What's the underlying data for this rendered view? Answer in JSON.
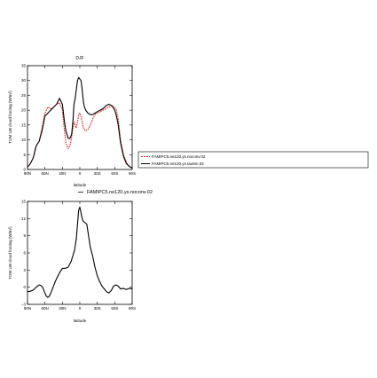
{
  "chart_data": [
    {
      "type": "line",
      "title": "DJF",
      "xlabel": "latitude",
      "ylabel": "TOM LW cloud forcing (W/m²)",
      "xlim": [
        90,
        -90
      ],
      "ylim": [
        0,
        35
      ],
      "x_ticks": [
        90,
        60,
        30,
        0,
        -30,
        -60,
        -90
      ],
      "x_tick_labels": [
        "90N",
        "60N",
        "30N",
        "0",
        "30S",
        "60S",
        "90S"
      ],
      "y_ticks": [
        0,
        5,
        10,
        15,
        20,
        25,
        30,
        35
      ],
      "y_tick_labels": [
        "0",
        "5",
        "10",
        "15",
        "20",
        "25",
        "30",
        "35"
      ],
      "grid": false,
      "legend_position": "right",
      "series": [
        {
          "name": "FAMIPC5.ne120.ys.noconv.02",
          "color": "#e02020",
          "style": "dashed",
          "x": [
            90,
            85,
            80,
            75,
            70,
            65,
            60,
            55,
            50,
            45,
            40,
            35,
            30,
            27,
            24,
            20,
            17,
            14,
            12,
            10,
            8,
            6,
            4,
            2,
            0,
            -2,
            -4,
            -6,
            -8,
            -10,
            -14,
            -18,
            -22,
            -26,
            -30,
            -35,
            -40,
            -45,
            -50,
            -55,
            -60,
            -63,
            -66,
            -70,
            -75,
            -80,
            -85,
            -90
          ],
          "y": [
            0.8,
            2,
            4,
            8,
            9.5,
            14,
            19,
            21,
            20.5,
            21,
            22,
            22.5,
            20,
            14,
            9,
            7,
            8,
            11,
            14,
            16,
            15,
            14,
            16,
            18.5,
            19,
            18,
            16,
            14,
            13.5,
            13,
            13.5,
            15,
            17,
            18.5,
            19,
            19.5,
            20,
            20.5,
            21,
            21.5,
            21,
            20,
            17,
            10,
            5,
            2.5,
            1,
            0.5
          ]
        },
        {
          "name": "FAMIPC5.ne120.ys.tau5m.02",
          "color": "#000000",
          "style": "solid",
          "x": [
            90,
            85,
            80,
            75,
            70,
            65,
            60,
            55,
            50,
            45,
            40,
            35,
            30,
            27,
            24,
            20,
            17,
            14,
            12,
            10,
            8,
            6,
            4,
            2,
            0,
            -2,
            -4,
            -6,
            -8,
            -10,
            -14,
            -18,
            -22,
            -26,
            -30,
            -35,
            -40,
            -45,
            -50,
            -55,
            -60,
            -63,
            -66,
            -70,
            -75,
            -80,
            -85,
            -90
          ],
          "y": [
            0.8,
            2,
            4,
            8,
            9.5,
            13,
            18,
            19,
            20,
            21,
            22,
            24,
            22,
            17,
            13,
            10.5,
            10.5,
            12,
            16,
            22,
            24,
            27,
            30,
            31,
            30.5,
            30,
            27,
            23,
            21,
            20,
            19,
            18.5,
            18.5,
            19,
            19.5,
            20,
            20.5,
            21.5,
            22,
            21.5,
            20,
            18,
            15,
            9,
            4.5,
            2,
            1,
            0.5
          ]
        }
      ]
    },
    {
      "type": "line",
      "title": "FAMIPC5.ne120.ys.noconv.02",
      "xlabel": "latitude",
      "ylabel": "TOM LW cloud forcing (W/m²)",
      "xlim": [
        90,
        -90
      ],
      "ylim": [
        -3,
        15
      ],
      "x_ticks": [
        90,
        60,
        30,
        0,
        -30,
        -60,
        -90
      ],
      "x_tick_labels": [
        "90N",
        "60N",
        "30N",
        "0",
        "30S",
        "60S",
        "90S"
      ],
      "y_ticks": [
        -3,
        0,
        3,
        6,
        9,
        12,
        15
      ],
      "y_tick_labels": [
        "−3",
        "0",
        "3",
        "6",
        "9",
        "12",
        "15"
      ],
      "grid": false,
      "series": [
        {
          "name": "FAMIPC5.ne120.ys.noconv.02",
          "color": "#000000",
          "style": "solid",
          "x": [
            90,
            85,
            80,
            75,
            70,
            67,
            64,
            61,
            58,
            55,
            52,
            49,
            46,
            43,
            40,
            35,
            30,
            25,
            20,
            15,
            12,
            9,
            6,
            4,
            2,
            0,
            -2,
            -4,
            -6,
            -9,
            -12,
            -15,
            -18,
            -22,
            -26,
            -30,
            -34,
            -38,
            -42,
            -46,
            -50,
            -54,
            -58,
            -62,
            -66,
            -70,
            -75,
            -80,
            -85,
            -90
          ],
          "y": [
            -0.8,
            -0.7,
            -0.5,
            0,
            0.4,
            0.3,
            0,
            -0.8,
            -1.5,
            -1.8,
            -1.5,
            -0.8,
            0,
            0.8,
            1.5,
            2.5,
            3.3,
            3.3,
            3.5,
            4.5,
            5.5,
            6.5,
            8.5,
            11,
            13.5,
            14,
            13,
            12,
            11.5,
            11.3,
            11,
            9,
            7,
            5.5,
            3.5,
            2,
            1,
            0.2,
            -0.3,
            -0.8,
            -1,
            -0.6,
            0.2,
            0.4,
            0.2,
            -0.3,
            -0.2,
            -0.4,
            -0.2,
            -0.3
          ]
        }
      ]
    }
  ]
}
